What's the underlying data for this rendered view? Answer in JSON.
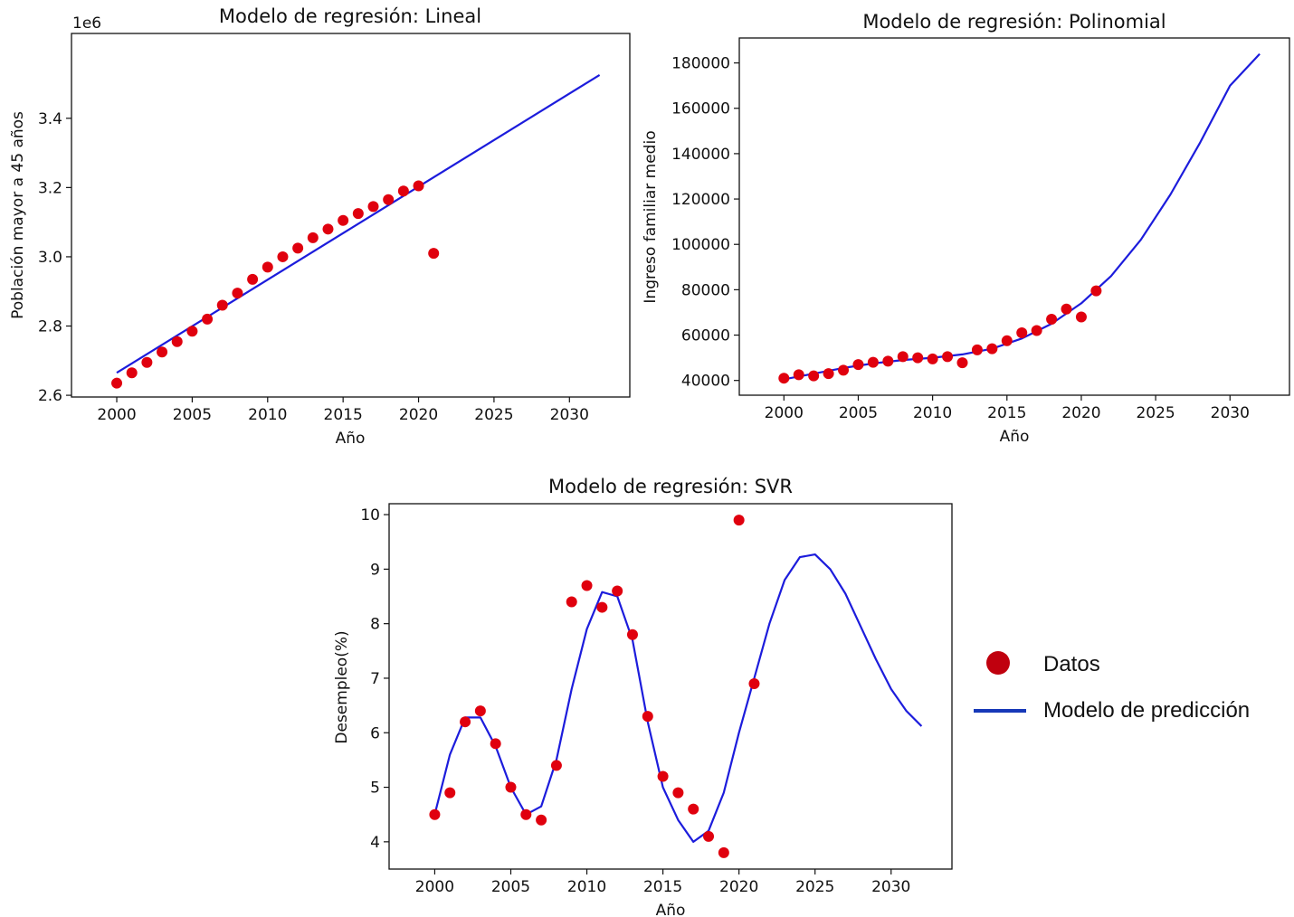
{
  "colors": {
    "data_points": "#e0000e",
    "model_line": "#1c1cdc",
    "legend_dot": "#c0000e",
    "legend_line": "#1638b8"
  },
  "legend": {
    "data_label": "Datos",
    "model_label": "Modelo de predicción"
  },
  "chart_data": [
    {
      "type": "scatter",
      "title": "Modelo de regresión: Lineal",
      "xlabel": "Año",
      "ylabel": "Población mayor a 45 años",
      "offset_label": "1e6",
      "xlim": [
        1997,
        2034
      ],
      "ylim": [
        2.595,
        3.645
      ],
      "xticks": [
        2000,
        2005,
        2010,
        2015,
        2020,
        2025,
        2030
      ],
      "yticks": [
        "2.6",
        "2.8",
        "3.0",
        "3.2",
        "3.4"
      ],
      "series": [
        {
          "role": "scatter",
          "x": [
            2000,
            2001,
            2002,
            2003,
            2004,
            2005,
            2006,
            2007,
            2008,
            2009,
            2010,
            2011,
            2012,
            2013,
            2014,
            2015,
            2016,
            2017,
            2018,
            2019,
            2020,
            2021
          ],
          "y": [
            2.635,
            2.665,
            2.695,
            2.725,
            2.755,
            2.785,
            2.82,
            2.86,
            2.895,
            2.935,
            2.97,
            3.0,
            3.025,
            3.055,
            3.08,
            3.105,
            3.125,
            3.145,
            3.165,
            3.19,
            3.205,
            3.01
          ]
        },
        {
          "role": "line",
          "x": [
            2000,
            2032
          ],
          "y": [
            2.665,
            3.525
          ]
        }
      ]
    },
    {
      "type": "scatter",
      "title": "Modelo de regresión: Polinomial",
      "xlabel": "Año",
      "ylabel": "Ingreso familiar medio",
      "xlim": [
        1997,
        2034
      ],
      "ylim": [
        33500,
        191000
      ],
      "xticks": [
        2000,
        2005,
        2010,
        2015,
        2020,
        2025,
        2030
      ],
      "yticks": [
        "40000",
        "60000",
        "80000",
        "100000",
        "120000",
        "140000",
        "160000",
        "180000"
      ],
      "series": [
        {
          "role": "scatter",
          "x": [
            2000,
            2001,
            2002,
            2003,
            2004,
            2005,
            2006,
            2007,
            2008,
            2009,
            2010,
            2011,
            2012,
            2013,
            2014,
            2015,
            2016,
            2017,
            2018,
            2019,
            2020,
            2021
          ],
          "y": [
            41000,
            42500,
            42000,
            43000,
            44500,
            47000,
            48000,
            48500,
            50500,
            50000,
            49500,
            50500,
            47800,
            53500,
            54000,
            57500,
            61000,
            62000,
            67000,
            71500,
            68000,
            79500
          ]
        },
        {
          "role": "line",
          "x": [
            2000,
            2002,
            2004,
            2006,
            2008,
            2010,
            2012,
            2014,
            2016,
            2018,
            2020,
            2022,
            2024,
            2026,
            2028,
            2030,
            2032
          ],
          "y": [
            40500,
            43000,
            45500,
            47500,
            49000,
            50000,
            51500,
            54000,
            58500,
            65000,
            74000,
            86000,
            102000,
            122000,
            145000,
            170000,
            184000
          ]
        }
      ]
    },
    {
      "type": "scatter",
      "title": "Modelo de regresión: SVR",
      "xlabel": "Año",
      "ylabel": "Desempleo(%)",
      "xlim": [
        1997,
        2034
      ],
      "ylim": [
        3.5,
        10.2
      ],
      "xticks": [
        2000,
        2005,
        2010,
        2015,
        2020,
        2025,
        2030
      ],
      "yticks": [
        "4",
        "5",
        "6",
        "7",
        "8",
        "9",
        "10"
      ],
      "series": [
        {
          "role": "scatter",
          "x": [
            2000,
            2001,
            2002,
            2003,
            2004,
            2005,
            2006,
            2007,
            2008,
            2009,
            2010,
            2011,
            2012,
            2013,
            2014,
            2015,
            2016,
            2017,
            2018,
            2019,
            2020,
            2021
          ],
          "y": [
            4.5,
            4.9,
            6.2,
            6.4,
            5.8,
            5.0,
            4.5,
            4.4,
            5.4,
            8.4,
            8.7,
            8.3,
            8.6,
            7.8,
            6.3,
            5.2,
            4.9,
            4.6,
            4.1,
            3.8,
            9.9,
            6.9
          ]
        },
        {
          "role": "line",
          "x": [
            2000,
            2001,
            2002,
            2003,
            2004,
            2005,
            2006,
            2007,
            2008,
            2009,
            2010,
            2011,
            2012,
            2013,
            2014,
            2015,
            2016,
            2017,
            2018,
            2019,
            2020,
            2021,
            2022,
            2023,
            2024,
            2025,
            2026,
            2027,
            2028,
            2029,
            2030,
            2031,
            2032
          ],
          "y": [
            4.5,
            5.6,
            6.28,
            6.28,
            5.75,
            5.0,
            4.5,
            4.65,
            5.5,
            6.8,
            7.9,
            8.58,
            8.5,
            7.7,
            6.2,
            5.0,
            4.4,
            4.0,
            4.2,
            4.9,
            6.0,
            7.0,
            8.0,
            8.8,
            9.22,
            9.27,
            9.0,
            8.55,
            7.95,
            7.35,
            6.8,
            6.4,
            6.12
          ]
        }
      ]
    }
  ]
}
